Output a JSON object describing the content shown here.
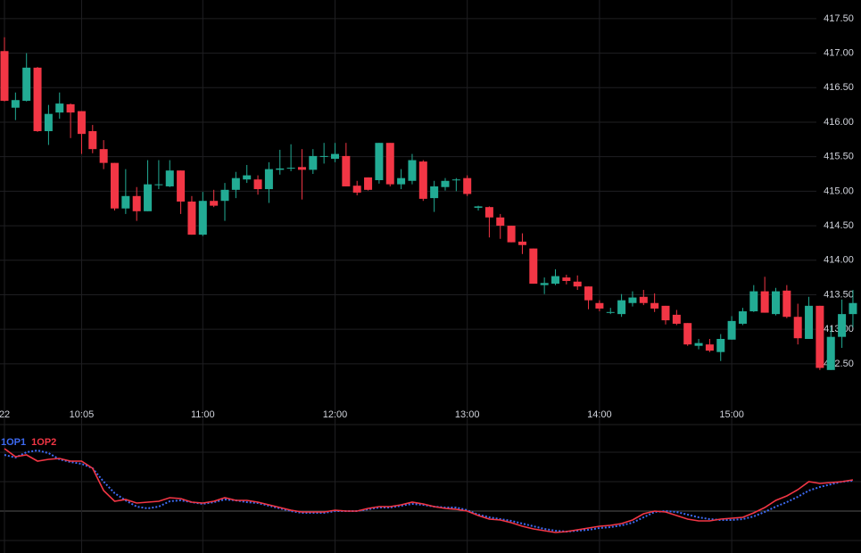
{
  "chart_data": [
    {
      "type": "candlestick",
      "categories": [
        "22",
        null,
        null,
        null,
        null,
        null,
        null,
        "10:05",
        null,
        null,
        null,
        null,
        null,
        null,
        null,
        null,
        null,
        null,
        "11:00",
        null,
        null,
        null,
        null,
        null,
        null,
        null,
        null,
        null,
        null,
        null,
        "12:00",
        null,
        null,
        null,
        null,
        null,
        null,
        null,
        null,
        null,
        null,
        null,
        "13:00",
        null,
        null,
        null,
        null,
        null,
        null,
        null,
        null,
        null,
        null,
        null,
        "14:00",
        null,
        null,
        null,
        null,
        null,
        null,
        null,
        null,
        null,
        null,
        null,
        "15:00",
        null,
        null,
        null,
        null,
        null,
        null,
        null,
        null,
        null,
        null,
        null
      ],
      "open": [
        417.03,
        416.21,
        416.31,
        416.79,
        415.87,
        416.14,
        416.26,
        416.16,
        415.87,
        415.61,
        415.41,
        414.75,
        414.93,
        414.71,
        415.09,
        415.07,
        415.3,
        414.85,
        414.37,
        414.86,
        414.86,
        415.02,
        415.17,
        415.17,
        415.03,
        415.31,
        415.33,
        415.35,
        415.31,
        415.5,
        415.47,
        415.51,
        415.08,
        415.2,
        415.16,
        415.7,
        415.1,
        415.15,
        415.43,
        414.9,
        415.06,
        415.16,
        415.19,
        414.76,
        414.77,
        414.62,
        414.5,
        414.27,
        414.17,
        413.64,
        413.66,
        413.75,
        413.69,
        413.62,
        413.38,
        413.24,
        413.22,
        413.38,
        413.47,
        413.38,
        413.34,
        413.21,
        413.09,
        412.76,
        412.78,
        412.67,
        412.85,
        413.08,
        413.26,
        413.55,
        413.22,
        413.56,
        413.18,
        412.86,
        413.34,
        412.41,
        412.89,
        413.22
      ],
      "high": [
        417.23,
        416.43,
        417.0,
        416.8,
        416.25,
        416.43,
        416.27,
        416.16,
        415.96,
        415.74,
        415.41,
        415.32,
        415.06,
        415.45,
        415.45,
        415.45,
        415.3,
        414.93,
        414.99,
        415.02,
        415.12,
        415.28,
        415.38,
        415.23,
        415.42,
        415.6,
        415.68,
        415.61,
        415.61,
        415.7,
        415.7,
        415.7,
        415.15,
        415.2,
        415.7,
        415.7,
        415.32,
        415.54,
        415.45,
        415.15,
        415.19,
        415.19,
        415.23,
        414.79,
        414.78,
        414.67,
        414.5,
        414.39,
        414.17,
        413.75,
        413.87,
        413.79,
        413.78,
        413.62,
        413.42,
        413.31,
        413.51,
        413.55,
        413.57,
        413.52,
        413.34,
        413.28,
        413.09,
        412.86,
        412.86,
        412.93,
        413.19,
        413.31,
        413.64,
        413.76,
        413.6,
        413.64,
        413.37,
        413.47,
        413.34,
        413.04,
        413.43,
        413.57
      ],
      "low": [
        416.3,
        416.03,
        416.3,
        415.86,
        415.67,
        416.05,
        415.77,
        415.54,
        415.55,
        415.32,
        414.72,
        414.67,
        414.57,
        414.71,
        415.03,
        415.06,
        414.67,
        414.37,
        414.35,
        414.77,
        414.57,
        414.9,
        415.12,
        414.95,
        414.83,
        415.24,
        415.29,
        414.88,
        415.25,
        415.4,
        415.42,
        415.07,
        414.94,
        415.01,
        415.11,
        415.07,
        415.03,
        415.1,
        414.86,
        414.7,
        415.01,
        415.0,
        414.93,
        414.72,
        414.33,
        414.31,
        414.26,
        414.09,
        413.66,
        413.51,
        413.64,
        413.65,
        413.57,
        413.29,
        413.26,
        413.22,
        413.18,
        413.33,
        413.35,
        413.25,
        413.07,
        413.06,
        412.76,
        412.71,
        412.67,
        412.54,
        412.85,
        413.06,
        413.25,
        413.24,
        413.2,
        413.16,
        412.78,
        412.86,
        412.41,
        412.41,
        412.73,
        413.03
      ],
      "close": [
        416.31,
        416.32,
        416.79,
        415.87,
        416.12,
        416.27,
        416.14,
        415.83,
        415.61,
        415.41,
        414.75,
        414.93,
        414.71,
        415.1,
        415.1,
        415.3,
        414.85,
        414.37,
        414.86,
        414.79,
        415.02,
        415.19,
        415.23,
        415.03,
        415.32,
        415.33,
        415.34,
        415.31,
        415.51,
        415.51,
        415.54,
        415.07,
        414.98,
        415.02,
        415.7,
        415.1,
        415.19,
        415.45,
        414.89,
        415.07,
        415.15,
        415.17,
        414.96,
        414.78,
        414.62,
        414.5,
        414.26,
        414.22,
        413.66,
        413.67,
        413.77,
        413.7,
        413.62,
        413.42,
        413.3,
        413.25,
        413.42,
        413.46,
        413.38,
        413.3,
        413.13,
        413.08,
        412.78,
        412.8,
        412.69,
        412.86,
        413.12,
        413.26,
        413.55,
        413.24,
        413.55,
        413.18,
        412.87,
        413.34,
        412.44,
        412.89,
        413.22,
        413.38
      ],
      "up_color": "#22ab94",
      "down_color": "#f23645",
      "ylim": [
        412.02,
        417.77
      ],
      "yticks": [
        {
          "value": 417.5,
          "label": "417.50"
        },
        {
          "value": 417,
          "label": "417.00"
        },
        {
          "value": 416.5,
          "label": "416.50"
        },
        {
          "value": 416,
          "label": "416.00"
        },
        {
          "value": 415.5,
          "label": "415.50"
        },
        {
          "value": 415,
          "label": "415.00"
        },
        {
          "value": 414.5,
          "label": "414.50"
        },
        {
          "value": 414,
          "label": "414.00"
        },
        {
          "value": 413.5,
          "label": "413.50"
        },
        {
          "value": 413,
          "label": "413.00"
        },
        {
          "value": 412.5,
          "label": "412.50"
        }
      ],
      "grid": true
    },
    {
      "type": "line",
      "series": [
        {
          "name": "1OP1",
          "color": "#3d6af2",
          "dashed": true,
          "values": [
            110,
            107,
            113,
            115,
            112,
            105,
            102,
            100,
            95,
            80,
            67,
            59,
            52,
            50,
            52,
            58,
            59,
            57,
            55,
            57,
            60,
            59,
            57,
            56,
            53,
            50,
            47,
            45,
            45,
            45,
            47,
            47,
            47,
            49,
            51,
            51,
            53,
            55,
            54,
            52,
            51,
            51,
            48,
            43,
            40,
            38,
            36,
            33,
            30,
            27,
            25,
            24,
            25,
            26,
            28,
            29,
            31,
            34,
            40,
            46,
            47,
            46,
            43,
            40,
            38,
            37,
            37,
            38,
            41,
            46,
            52,
            57,
            63,
            70,
            74,
            77,
            80,
            81
          ]
        },
        {
          "name": "1OP2",
          "color": "#f23645",
          "dashed": false,
          "values": [
            117,
            108,
            110,
            103,
            105,
            106,
            103,
            103,
            95,
            70,
            58,
            60,
            56,
            57,
            58,
            62,
            61,
            57,
            56,
            58,
            62,
            59,
            59,
            57,
            54,
            51,
            48,
            46,
            46,
            46,
            48,
            47,
            47,
            50,
            52,
            52,
            54,
            57,
            55,
            52,
            50,
            49,
            47,
            42,
            38,
            37,
            34,
            30,
            27,
            25,
            23,
            24,
            26,
            28,
            30,
            31,
            33,
            37,
            44,
            47,
            46,
            42,
            38,
            36,
            36,
            38,
            39,
            40,
            45,
            51,
            59,
            64,
            71,
            80,
            78,
            79,
            80,
            82
          ]
        }
      ],
      "ylim": [
        0,
        140
      ]
    }
  ]
}
